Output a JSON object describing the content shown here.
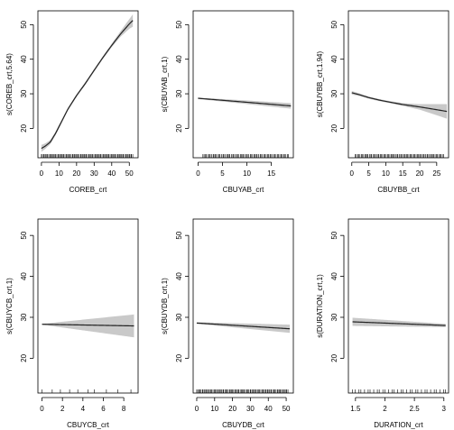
{
  "chart_data": [
    {
      "type": "line",
      "xlabel": "COREB_crt",
      "ylabel": "s(COREB_crt,5.64)",
      "xlim": [
        -2,
        55
      ],
      "ylim": [
        11.5,
        54
      ],
      "xticks": [
        0,
        10,
        20,
        30,
        40,
        50
      ],
      "yticks": [
        20,
        30,
        40,
        50
      ],
      "x": [
        0,
        2,
        5,
        8,
        10,
        15,
        20,
        25,
        30,
        35,
        40,
        45,
        50,
        52
      ],
      "y": [
        14.2,
        14.8,
        16.0,
        18.5,
        20.5,
        25.5,
        29.5,
        33.0,
        36.8,
        40.5,
        44.0,
        47.3,
        50.2,
        51.2
      ],
      "band_halfwidth": [
        1.0,
        0.8,
        0.6,
        0.5,
        0.5,
        0.4,
        0.4,
        0.4,
        0.4,
        0.4,
        0.5,
        0.8,
        1.4,
        1.8
      ],
      "rug_range": [
        0,
        52
      ],
      "rug_count": 90,
      "grid": false
    },
    {
      "type": "line",
      "xlabel": "CBUYAB_crt",
      "ylabel": "s(CBUYAB_crt,1)",
      "xlim": [
        -1,
        19.5
      ],
      "ylim": [
        11.5,
        54
      ],
      "xticks": [
        0,
        5,
        10,
        15
      ],
      "yticks": [
        20,
        30,
        40,
        50
      ],
      "x": [
        0,
        19
      ],
      "y": [
        28.7,
        26.5
      ],
      "band_halfwidth": [
        0.2,
        0.8
      ],
      "rug_range": [
        1,
        18.5
      ],
      "rug_count": 70,
      "grid": false
    },
    {
      "type": "line",
      "xlabel": "CBUYBB_crt",
      "ylabel": "s(CBUYBB_crt,1.94)",
      "xlim": [
        -1,
        28.5
      ],
      "ylim": [
        11.5,
        54
      ],
      "xticks": [
        0,
        5,
        10,
        15,
        20,
        25
      ],
      "yticks": [
        20,
        30,
        40,
        50
      ],
      "x": [
        0,
        2,
        5,
        8,
        10,
        15,
        20,
        25,
        28
      ],
      "y": [
        30.3,
        29.8,
        28.9,
        28.2,
        27.8,
        26.9,
        26.2,
        25.4,
        24.9
      ],
      "band_halfwidth": [
        0.5,
        0.4,
        0.3,
        0.3,
        0.3,
        0.4,
        0.8,
        1.6,
        2.1
      ],
      "rug_range": [
        1,
        27
      ],
      "rug_count": 75,
      "grid": false
    },
    {
      "type": "line",
      "xlabel": "CBUYCB_crt",
      "ylabel": "s(CBUYCB_crt,1)",
      "xlim": [
        -0.4,
        9.4
      ],
      "ylim": [
        11.5,
        54
      ],
      "xticks": [
        0,
        2,
        4,
        6,
        8
      ],
      "yticks": [
        20,
        30,
        40,
        50
      ],
      "x": [
        0,
        9
      ],
      "y": [
        28.3,
        27.9
      ],
      "band_halfwidth": [
        0.1,
        2.8
      ],
      "rug_values": [
        0,
        1,
        1.8,
        2.7,
        3.5,
        4.5,
        5.1,
        6.3,
        7.4,
        8.7
      ],
      "grid": false
    },
    {
      "type": "line",
      "xlabel": "CBUYDB_crt",
      "ylabel": "s(CBUYDB_crt,1)",
      "xlim": [
        -2,
        54
      ],
      "ylim": [
        11.5,
        54
      ],
      "xticks": [
        0,
        10,
        20,
        30,
        40,
        50
      ],
      "yticks": [
        20,
        30,
        40,
        50
      ],
      "x": [
        0,
        52
      ],
      "y": [
        28.6,
        27.2
      ],
      "band_halfwidth": [
        0.2,
        1.0
      ],
      "rug_range": [
        0,
        51
      ],
      "rug_count": 85,
      "grid": false
    },
    {
      "type": "line",
      "xlabel": "DURATION_crt",
      "ylabel": "s(DURATION_crt,1)",
      "xlim": [
        1.38,
        3.08
      ],
      "ylim": [
        11.5,
        54
      ],
      "xticks": [
        1.5,
        2.0,
        2.5,
        3.0
      ],
      "yticks": [
        20,
        30,
        40,
        50
      ],
      "x": [
        1.45,
        3.03
      ],
      "y": [
        28.9,
        28.0
      ],
      "band_halfwidth": [
        1.0,
        0.4
      ],
      "rug_range": [
        1.45,
        3.03
      ],
      "rug_count": 32,
      "grid": false
    }
  ]
}
